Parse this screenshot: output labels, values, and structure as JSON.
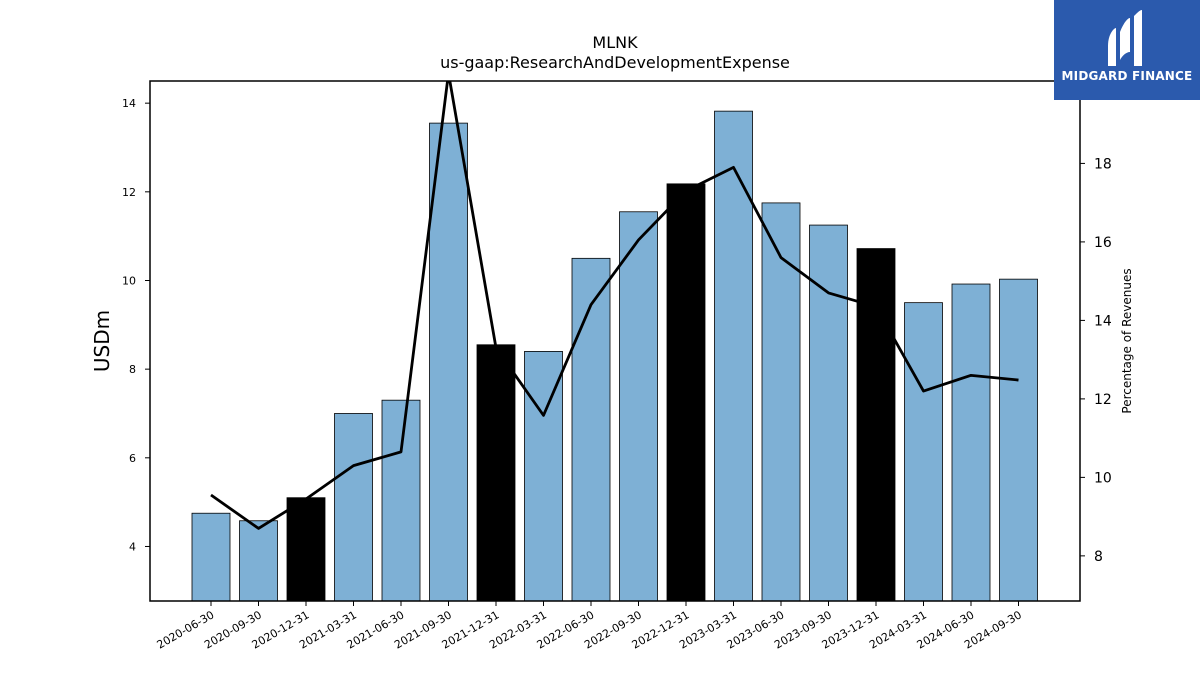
{
  "brand": {
    "name": "MIDGARD FINANCE",
    "bg_color": "#2b5aad"
  },
  "chart_data": {
    "type": "bar+line",
    "title": "MLNK",
    "subtitle": "us-gaap:ResearchAndDevelopmentExpense",
    "ylabel": "USDm",
    "y2label": "Percentage of Revenues",
    "ylim": [
      2.77,
      14.5
    ],
    "y2lim": [
      6.85,
      20.1
    ],
    "yticks": [
      4,
      6,
      8,
      10,
      12,
      14
    ],
    "y2ticks": [
      8,
      10,
      12,
      14,
      16,
      18
    ],
    "categories": [
      "2020-06-30",
      "2020-09-30",
      "2020-12-31",
      "2021-03-31",
      "2021-06-30",
      "2021-09-30",
      "2021-12-31",
      "2022-03-31",
      "2022-06-30",
      "2022-09-30",
      "2022-12-31",
      "2023-03-31",
      "2023-06-30",
      "2023-09-30",
      "2023-12-31",
      "2024-03-31",
      "2024-06-30",
      "2024-09-30"
    ],
    "series": [
      {
        "kind": "bar",
        "values": [
          4.75,
          4.58,
          5.1,
          7.0,
          7.3,
          13.55,
          8.55,
          8.4,
          10.5,
          11.55,
          12.18,
          13.82,
          11.75,
          11.25,
          10.72,
          9.5,
          9.92,
          10.03
        ],
        "colors": [
          "#7eb0d5",
          "#7eb0d5",
          "#000000",
          "#7eb0d5",
          "#7eb0d5",
          "#7eb0d5",
          "#000000",
          "#7eb0d5",
          "#7eb0d5",
          "#7eb0d5",
          "#000000",
          "#7eb0d5",
          "#7eb0d5",
          "#7eb0d5",
          "#000000",
          "#7eb0d5",
          "#7eb0d5",
          "#7eb0d5"
        ]
      },
      {
        "kind": "line",
        "axis": "right",
        "color": "#000000",
        "values": [
          9.55,
          8.7,
          9.45,
          10.3,
          10.65,
          20.3,
          13.3,
          11.58,
          14.4,
          16.05,
          17.3,
          17.9,
          15.6,
          14.7,
          14.35,
          12.2,
          12.6,
          12.48
        ]
      }
    ],
    "grid": false,
    "legend": "none"
  }
}
